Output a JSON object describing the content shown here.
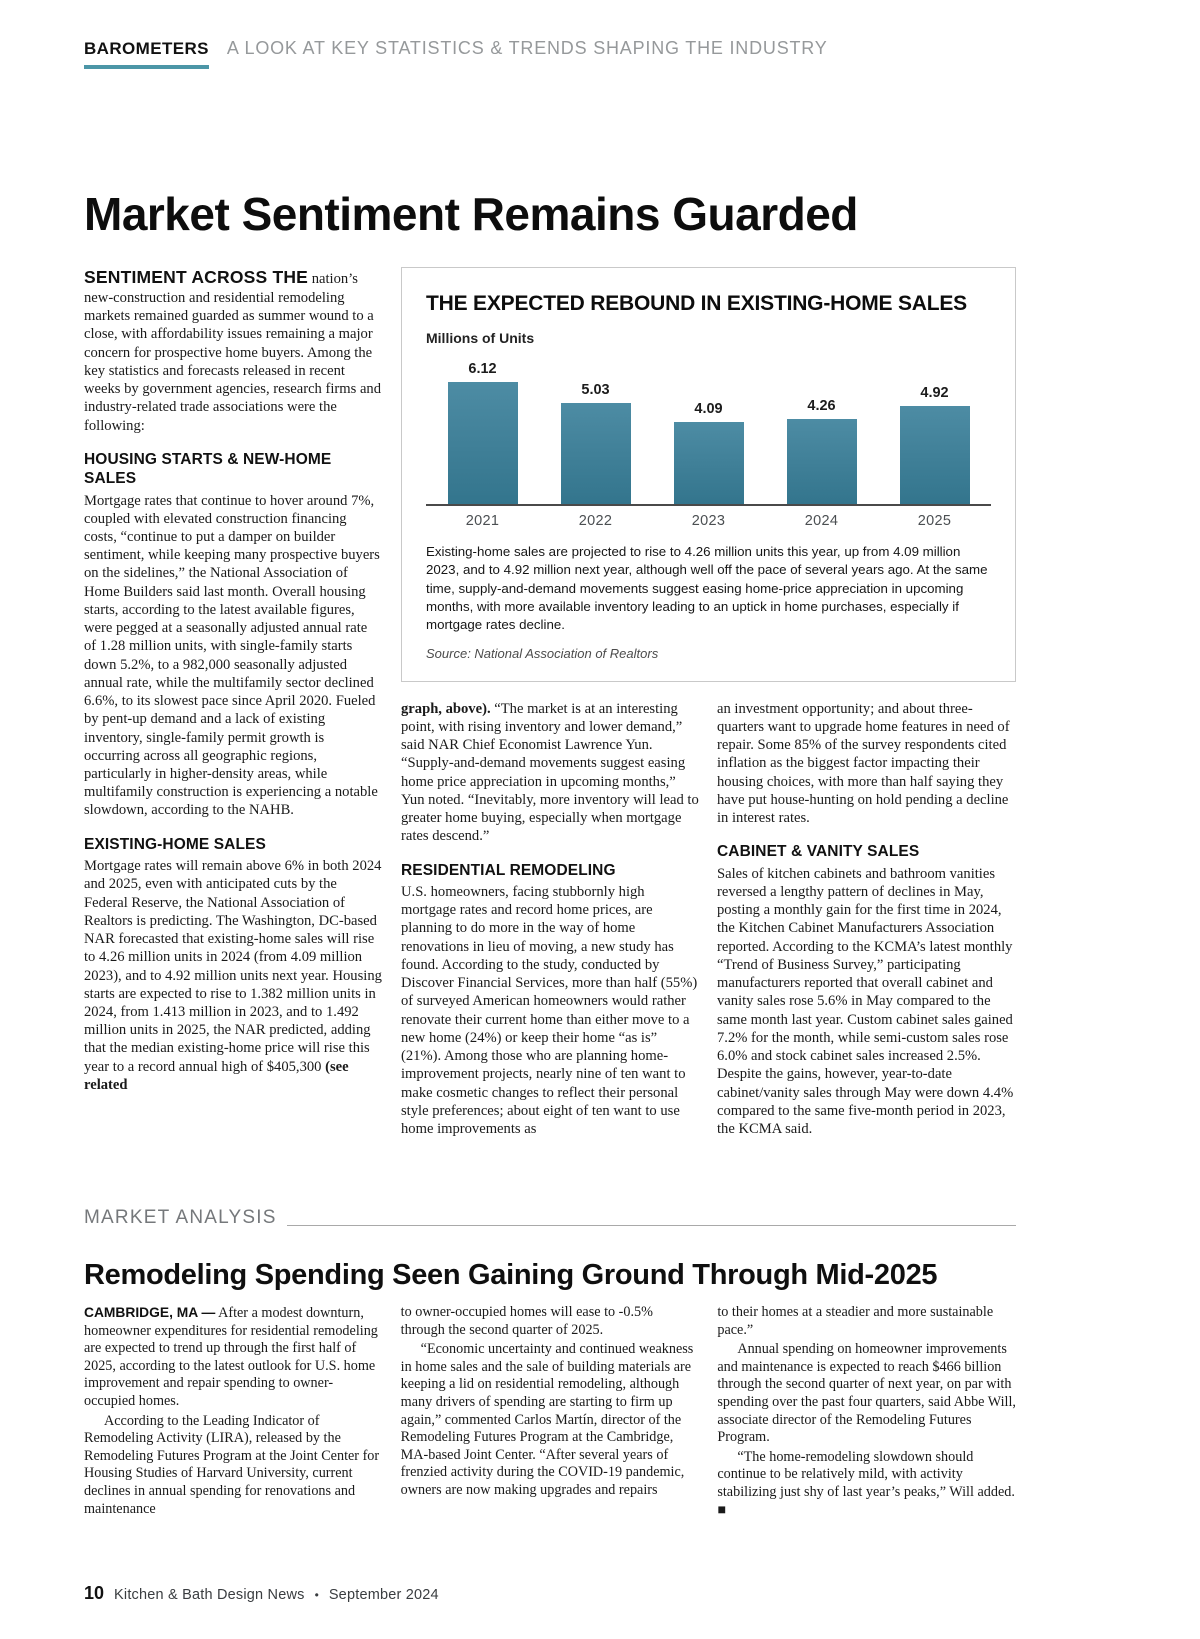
{
  "masthead": {
    "kicker": "BAROMETERS",
    "tagline": "A LOOK AT KEY STATISTICS & TRENDS SHAPING THE INDUSTRY"
  },
  "article": {
    "title": "Market Sentiment Remains Guarded",
    "intro": {
      "lead": "SENTIMENT ACROSS THE",
      "text": "nation’s new-construction and residential remodeling markets remained guarded as summer wound to a close, with affordability issues remaining a major concern for prospective home buyers. Among the key statistics and forecasts released in recent weeks by government agencies, research firms and industry-related trade associations were the following:"
    },
    "sections": [
      {
        "heading": "HOUSING STARTS & NEW-HOME SALES",
        "text": "Mortgage rates that continue to hover around 7%, coupled with elevated construction financing costs, “continue to put a damper on builder sentiment, while keeping many prospective buyers on the sidelines,” the National Association of Home Builders said last month. Overall housing starts, according to the latest available figures, were pegged at a seasonally adjusted annual rate of 1.28 million units, with single-family starts down 5.2%, to a 982,000 seasonally adjusted annual rate, while the multifamily sector declined 6.6%, to its slowest pace since April 2020. Fueled by pent-up demand and a lack of existing inventory, single-family permit growth is occurring across all geographic regions, particularly in higher-density areas, while multifamily construction is experiencing a notable slowdown, according to the NAHB."
      },
      {
        "heading": "EXISTING-HOME SALES",
        "text": "Mortgage rates will remain above 6% in both 2024 and 2025, even with anticipated cuts by the Federal Reserve, the National Association of Realtors is predicting. The Washington, DC-based NAR forecasted that existing-home sales will rise to 4.26 million units in 2024 (from 4.09 million 2023), and to 4.92 million units next year. Housing starts are expected to rise to 1.382 million units in 2024, from 1.413 million in 2023, and to 1.492 million units in 2025, the NAR predicted, adding that the median existing-home price will rise this year to a record annual high of $405,300",
        "tail_bold": "(see related"
      },
      {
        "heading": "RESIDENTIAL REMODELING",
        "text": "U.S. homeowners, facing stubbornly high mortgage rates and record home prices, are planning to do more in the way of home renovations in lieu of moving, a new study has found. According to the study, conducted by Discover Financial Services, more than half (55%) of surveyed American homeowners would rather renovate their current home than either move to a new home (24%) or keep their home “as is” (21%). Among those who are planning home-improvement projects, nearly nine of ten want to make cosmetic changes to reflect their personal style preferences; about eight of ten want to use home improvements as"
      },
      {
        "heading": "CABINET & VANITY SALES",
        "text": "Sales of kitchen cabinets and bathroom vanities reversed a lengthy pattern of declines in May, posting a monthly gain for the first time in 2024, the Kitchen Cabinet Manufacturers Association reported. According to the KCMA’s latest monthly “Trend of Business Survey,” participating manufacturers reported that overall cabinet and vanity sales rose 5.6% in May compared to the same month last year. Custom cabinet sales gained 7.2% for the month, while semi-custom sales rose 6.0% and stock cabinet sales increased 2.5%. Despite the gains, however, year-to-date cabinet/vanity sales through May were down 4.4% compared to the same five-month period in 2023, the KCMA said."
      }
    ],
    "continue_bold": "graph, above).",
    "continue_text": "“The market is at an interesting point, with rising inventory and lower demand,” said NAR Chief Economist Lawrence Yun. “Supply-and-demand movements suggest easing home price appreciation in upcoming months,” Yun noted. “Inevitably, more inventory will lead to greater home buying, especially when mortgage rates descend.”",
    "col3_text": "an investment opportunity; and about three-quarters want to upgrade home features in need of repair. Some 85% of the survey respondents cited inflation as the biggest factor impacting their housing choices, with more than half saying they have put house-hunting on hold pending a decline in interest rates."
  },
  "chart_data": {
    "type": "bar",
    "title": "THE EXPECTED REBOUND IN EXISTING-HOME SALES",
    "ylabel": "Millions of Units",
    "categories": [
      "2021",
      "2022",
      "2023",
      "2024",
      "2025"
    ],
    "values": [
      6.12,
      5.03,
      4.09,
      4.26,
      4.92
    ],
    "ylim": [
      0,
      6.5
    ],
    "grid": false,
    "legend": "none",
    "bar_color_top": "#4d8ca4",
    "bar_color_bottom": "#33758d",
    "caption": "Existing-home sales are projected to rise to 4.26 million units this year, up from 4.09 million 2023, and to 4.92 million next year, although well off the pace of several years ago. At the same time, supply-and-demand movements suggest easing home-price appreciation in upcoming months, with more available inventory leading to an uptick in home purchases, especially if mortgage rates decline.",
    "source": "Source: National Association of Realtors"
  },
  "market_analysis": {
    "label": "MARKET ANALYSIS",
    "heading": "Remodeling Spending Seen Gaining Ground Through Mid-2025",
    "col1": [
      {
        "lead": "CAMBRIDGE, MA —",
        "text": "After a modest downturn, homeowner expenditures for residential remodeling are expected to trend up through the first half of 2025, according to the latest outlook for U.S. home improvement and repair spending to owner-occupied homes."
      },
      {
        "text": "According to the Leading Indicator of Remodeling Activity (LIRA), released by the Remodeling Futures Program at the Joint Center for Housing Studies of Harvard University, current declines in annual spending for renovations and maintenance"
      }
    ],
    "col2": [
      {
        "text": "to owner-occupied homes will ease to -0.5% through the second quarter of 2025."
      },
      {
        "text": "“Economic uncertainty and continued weakness in home sales and the sale of building materials are keeping a lid on residential remodeling, although many drivers of spending are starting to firm up again,” commented Carlos Martín, director of the Remodeling Futures Program at the Cambridge, MA-based Joint Center. “After several years of frenzied activity during the COVID-19 pandemic, owners are now making upgrades and repairs"
      }
    ],
    "col3": [
      {
        "text": "to their homes at a steadier and more sustainable pace.”"
      },
      {
        "text": "Annual spending on homeowner improvements and maintenance is expected to reach $466 billion through the second quarter of next year, on par with spending over the past four quarters, said Abbe Will, associate director of the Remodeling Futures Program."
      },
      {
        "text": "“The home-remodeling slowdown should continue to be relatively mild, with activity stabilizing just shy of last year’s peaks,” Will added. ■"
      }
    ]
  },
  "footer": {
    "page_number": "10",
    "publication": "Kitchen & Bath Design News",
    "separator": "•",
    "issue": "September 2024"
  }
}
